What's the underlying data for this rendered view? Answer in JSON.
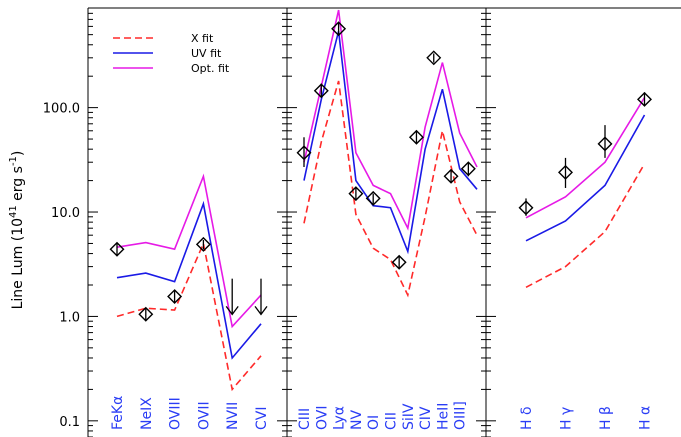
{
  "chart_data": {
    "type": "line",
    "yscale": "log",
    "ylim": [
      0.07,
      900
    ],
    "ylabel": "Line Lum (10^41 erg s^-1)",
    "ylabel_parts": {
      "main": "Line Lum (10",
      "exp1": "41",
      "mid": " erg s",
      "exp2": "-1",
      "close": ")"
    },
    "yticks": [
      {
        "value": 0.1,
        "label": "0.1"
      },
      {
        "value": 1,
        "label": "1.0"
      },
      {
        "value": 10,
        "label": "10.0"
      },
      {
        "value": 100,
        "label": "100.0"
      }
    ],
    "legend": {
      "placement": "top-left",
      "entries": [
        {
          "name": "X fit",
          "color": "#ff2a2a",
          "style": "dashed"
        },
        {
          "name": "UV fit",
          "color": "#1a1ae6",
          "style": "solid"
        },
        {
          "name": "Opt. fit",
          "color": "#e61ae6",
          "style": "solid"
        }
      ]
    },
    "colors": {
      "x_fit": "#ff2a2a",
      "uv_fit": "#1a1ae6",
      "opt_fit": "#e61ae6",
      "labels": "#2a3df5"
    },
    "panels": [
      {
        "categories": [
          "FeKα",
          "NeIX",
          "OVIII",
          "OVII",
          "NVII",
          "CVI"
        ],
        "x_fit": [
          1.0,
          1.2,
          1.15,
          5.0,
          0.2,
          0.42
        ],
        "uv_fit": [
          2.35,
          2.6,
          2.15,
          12.0,
          0.4,
          0.85
        ],
        "opt_fit": [
          4.6,
          5.1,
          4.4,
          22.0,
          0.8,
          1.6
        ],
        "observed": [
          {
            "value": 4.4,
            "err_lo": 3.9,
            "err_hi": 5.1,
            "upper_limit": false
          },
          {
            "value": 1.05,
            "err_lo": 0.92,
            "err_hi": 1.2,
            "upper_limit": false
          },
          {
            "value": 1.55,
            "err_lo": 1.35,
            "err_hi": 1.75,
            "upper_limit": false
          },
          {
            "value": 4.9,
            "err_lo": 4.4,
            "err_hi": 5.4,
            "upper_limit": false
          },
          {
            "value": 2.3,
            "upper_limit": true
          },
          {
            "value": 2.3,
            "upper_limit": true
          }
        ]
      },
      {
        "categories": [
          "CIII",
          "OVI",
          "Lyα",
          "NV",
          "OI",
          "CII",
          "SiIV",
          "CIV",
          "HeII",
          "OIII]"
        ],
        "x_fit": [
          7.8,
          47,
          180,
          9.5,
          4.5,
          3.5,
          1.6,
          9,
          60,
          12.5,
          6.0
        ],
        "uv_fit": [
          20,
          120,
          540,
          20,
          11.5,
          11,
          4.2,
          40,
          150,
          26,
          16.5
        ],
        "opt_fit": [
          30,
          160,
          860,
          37,
          18,
          15,
          7.0,
          65,
          270,
          57,
          27
        ],
        "x_positions": [
          0,
          1,
          2,
          3,
          4,
          5,
          6,
          7,
          8,
          9,
          10
        ],
        "observed": [
          {
            "x": 0,
            "value": 37,
            "err_lo": 27,
            "err_hi": 52
          },
          {
            "x": 1,
            "value": 145,
            "err_lo": 125,
            "err_hi": 170
          },
          {
            "x": 2,
            "value": 570,
            "err_lo": 500,
            "err_hi": 650
          },
          {
            "x": 3,
            "value": 15,
            "err_lo": 13,
            "err_hi": 17
          },
          {
            "x": 4,
            "value": 13.5,
            "err_lo": 12,
            "err_hi": 15
          },
          {
            "x": 5.5,
            "value": 3.3,
            "err_lo": 2.9,
            "err_hi": 3.8
          },
          {
            "x": 6.5,
            "value": 52,
            "err_lo": 46,
            "err_hi": 60
          },
          {
            "x": 7.5,
            "value": 300,
            "err_lo": 270,
            "err_hi": 330
          },
          {
            "x": 8.5,
            "value": 22,
            "err_lo": 19.5,
            "err_hi": 25
          },
          {
            "x": 9.5,
            "value": 26,
            "err_lo": 22,
            "err_hi": 30
          }
        ]
      },
      {
        "categories": [
          "H δ",
          "H γ",
          "H β",
          "H α"
        ],
        "x_fit": [
          1.9,
          3.0,
          6.5,
          29
        ],
        "uv_fit": [
          5.3,
          8.2,
          18,
          85
        ],
        "opt_fit": [
          8.8,
          14,
          30,
          125
        ],
        "observed": [
          {
            "value": 11,
            "err_lo": 9.2,
            "err_hi": 13.5
          },
          {
            "value": 24,
            "err_lo": 17,
            "err_hi": 33
          },
          {
            "value": 45,
            "err_lo": 33,
            "err_hi": 68
          },
          {
            "value": 120,
            "err_lo": 105,
            "err_hi": 140
          }
        ]
      }
    ]
  }
}
